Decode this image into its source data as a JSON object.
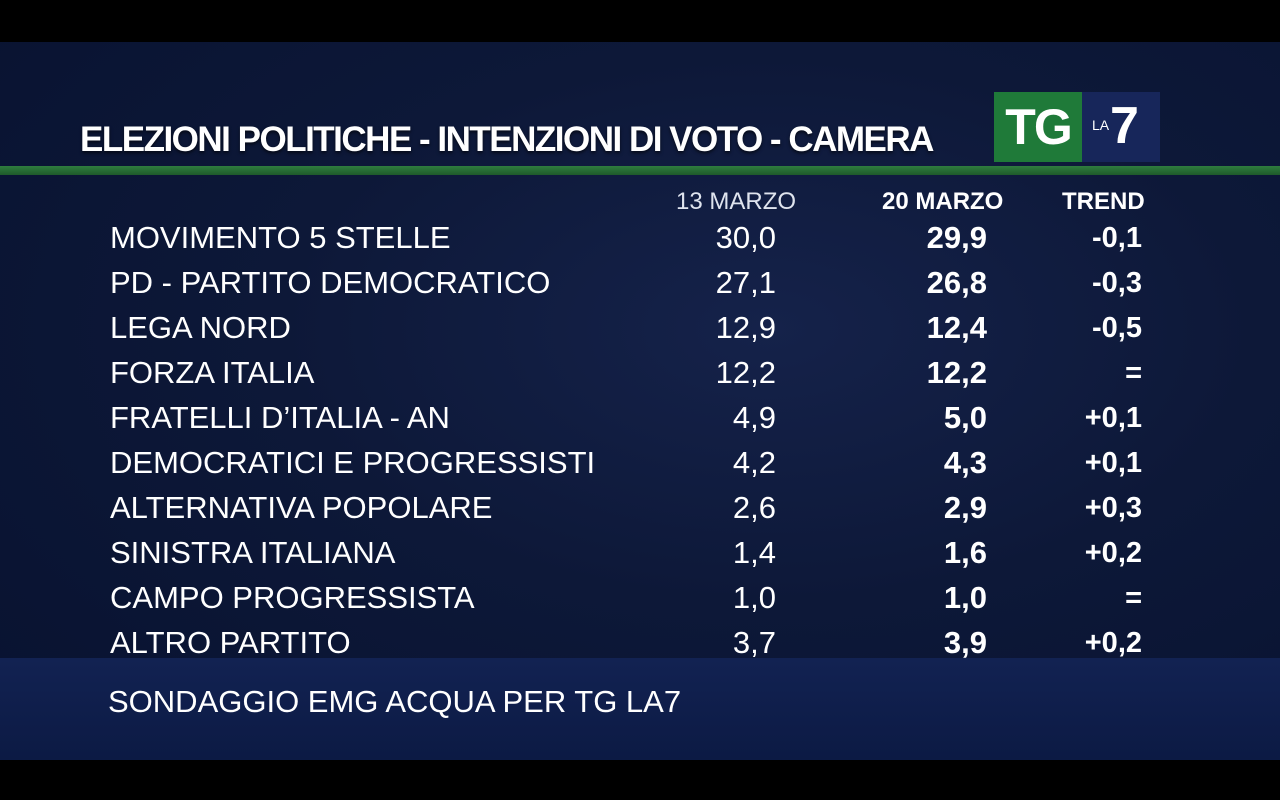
{
  "header": {
    "title": "ELEZIONI POLITICHE - INTENZIONI DI VOTO - CAMERA",
    "logo_tg": "TG",
    "logo_la": "LA",
    "logo_7": "7"
  },
  "footer": {
    "source": "SONDAGGIO EMG ACQUA PER TG LA7"
  },
  "chart_data": {
    "type": "table",
    "title": "ELEZIONI POLITICHE - INTENZIONI DI VOTO - CAMERA",
    "columns": [
      "13 MARZO",
      "20 MARZO",
      "TREND"
    ],
    "rows": [
      {
        "party": "MOVIMENTO 5 STELLE",
        "v13": "30,0",
        "v20": "29,9",
        "trend": "-0,1"
      },
      {
        "party": "PD - PARTITO DEMOCRATICO",
        "v13": "27,1",
        "v20": "26,8",
        "trend": "-0,3"
      },
      {
        "party": "LEGA NORD",
        "v13": "12,9",
        "v20": "12,4",
        "trend": "-0,5"
      },
      {
        "party": "FORZA ITALIA",
        "v13": "12,2",
        "v20": "12,2",
        "trend": "="
      },
      {
        "party": "FRATELLI D’ITALIA - AN",
        "v13": "4,9",
        "v20": "5,0",
        "trend": "+0,1"
      },
      {
        "party": "DEMOCRATICI E PROGRESSISTI",
        "v13": "4,2",
        "v20": "4,3",
        "trend": "+0,1"
      },
      {
        "party": "ALTERNATIVA POPOLARE",
        "v13": "2,6",
        "v20": "2,9",
        "trend": "+0,3"
      },
      {
        "party": "SINISTRA ITALIANA",
        "v13": "1,4",
        "v20": "1,6",
        "trend": "+0,2"
      },
      {
        "party": "CAMPO PROGRESSISTA",
        "v13": "1,0",
        "v20": "1,0",
        "trend": "="
      },
      {
        "party": "ALTRO PARTITO",
        "v13": "3,7",
        "v20": "3,9",
        "trend": "+0,2"
      }
    ]
  }
}
